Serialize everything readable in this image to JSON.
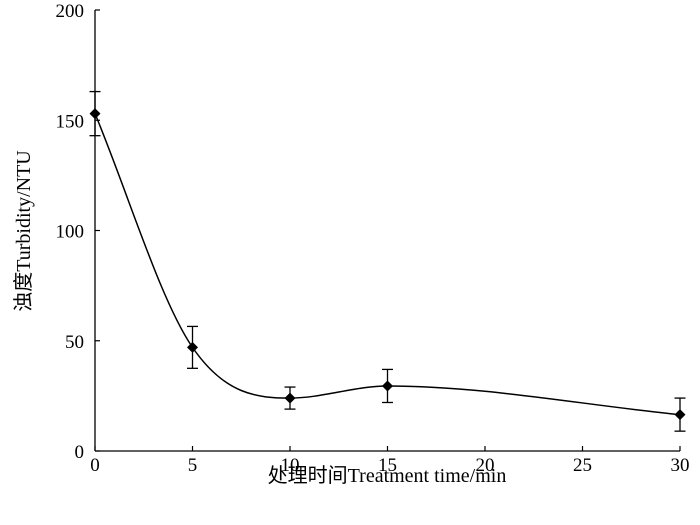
{
  "chart_data": {
    "type": "line",
    "title": "",
    "xlabel": "处理时间Treatment time/min",
    "ylabel": "浊度Turbidity/NTU",
    "xlim": [
      0,
      30
    ],
    "ylim": [
      0,
      200
    ],
    "xticks": [
      0,
      5,
      10,
      15,
      20,
      25,
      30
    ],
    "yticks": [
      0,
      50,
      100,
      150,
      200
    ],
    "grid": false,
    "legend": "none",
    "marker": "diamond",
    "line_style": "smooth",
    "color": "#000000",
    "series": [
      {
        "x": [
          0,
          5,
          10,
          15,
          30
        ],
        "y": [
          153,
          47,
          24,
          29.5,
          16.5
        ],
        "error": [
          10,
          9.5,
          5,
          7.5,
          7.5
        ]
      }
    ]
  }
}
